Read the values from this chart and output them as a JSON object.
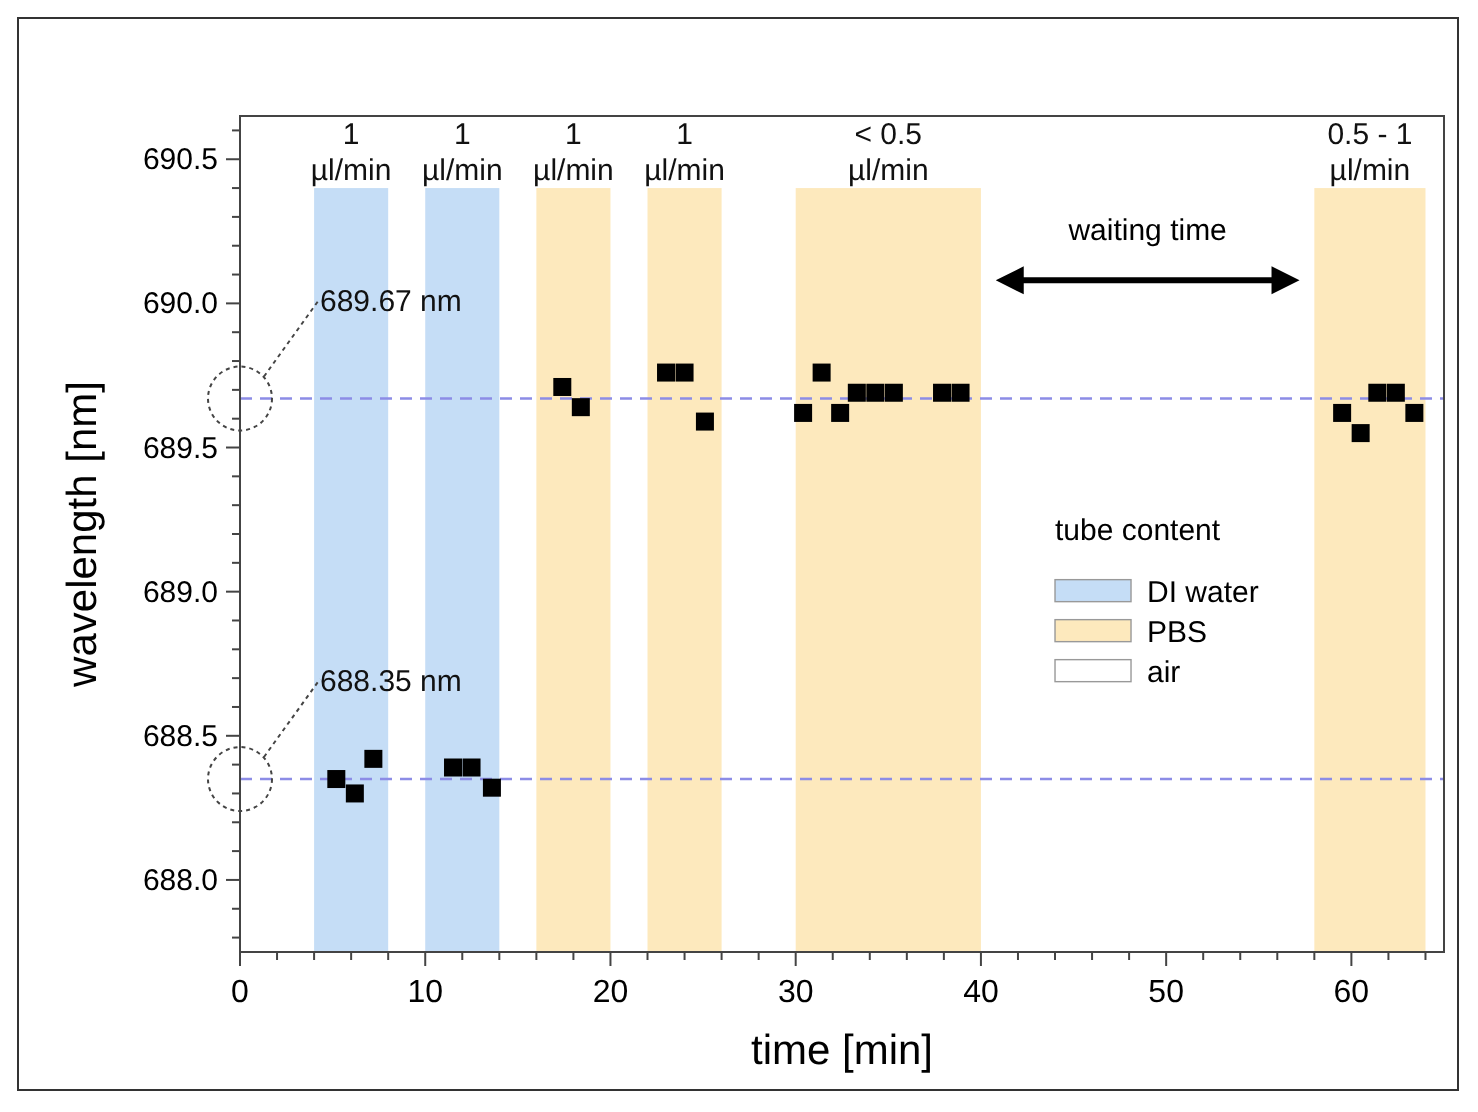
{
  "chart_data": {
    "type": "scatter",
    "xlabel": "time [min]",
    "ylabel": "wavelength [nm]",
    "legend_title": "tube content",
    "marker": "square",
    "xlim": [
      0,
      65
    ],
    "ylim": [
      687.75,
      690.65
    ],
    "xticks": [
      0,
      {
        "value": 2,
        "label": null
      },
      {
        "value": 4,
        "label": null
      },
      {
        "value": 6,
        "label": null
      },
      {
        "value": 8,
        "label": null
      },
      10,
      {
        "value": 12,
        "label": null
      },
      {
        "value": 14,
        "label": null
      },
      {
        "value": 16,
        "label": null
      },
      {
        "value": 18,
        "label": null
      },
      20,
      {
        "value": 22,
        "label": null
      },
      {
        "value": 24,
        "label": null
      },
      {
        "value": 26,
        "label": null
      },
      {
        "value": 28,
        "label": null
      },
      30,
      {
        "value": 32,
        "label": null
      },
      {
        "value": 34,
        "label": null
      },
      {
        "value": 36,
        "label": null
      },
      {
        "value": 38,
        "label": null
      },
      40,
      {
        "value": 42,
        "label": null
      },
      {
        "value": 44,
        "label": null
      },
      {
        "value": 46,
        "label": null
      },
      {
        "value": 48,
        "label": null
      },
      50,
      {
        "value": 52,
        "label": null
      },
      {
        "value": 54,
        "label": null
      },
      {
        "value": 56,
        "label": null
      },
      {
        "value": 58,
        "label": null
      },
      60,
      {
        "value": 62,
        "label": null
      },
      {
        "value": 64,
        "label": null
      }
    ],
    "yticks": [
      {
        "value": 687.8,
        "label": null
      },
      {
        "value": 687.9,
        "label": null
      },
      {
        "value": 688,
        "label": "688.0"
      },
      {
        "value": 688.1,
        "label": null
      },
      {
        "value": 688.2,
        "label": null
      },
      {
        "value": 688.3,
        "label": null
      },
      {
        "value": 688.4,
        "label": null
      },
      688.5,
      {
        "value": 688.6,
        "label": null
      },
      {
        "value": 688.7,
        "label": null
      },
      {
        "value": 688.8,
        "label": null
      },
      {
        "value": 688.9,
        "label": null
      },
      {
        "value": 689,
        "label": "689.0"
      },
      {
        "value": 689.1,
        "label": null
      },
      {
        "value": 689.2,
        "label": null
      },
      {
        "value": 689.3,
        "label": null
      },
      {
        "value": 689.4,
        "label": null
      },
      689.5,
      {
        "value": 689.6,
        "label": null
      },
      {
        "value": 689.7,
        "label": null
      },
      {
        "value": 689.8,
        "label": null
      },
      {
        "value": 689.9,
        "label": null
      },
      {
        "value": 690,
        "label": "690.0"
      },
      {
        "value": 690.1,
        "label": null
      },
      {
        "value": 690.2,
        "label": null
      },
      {
        "value": 690.3,
        "label": null
      },
      {
        "value": 690.4,
        "label": null
      },
      690.5,
      {
        "value": 690.6,
        "label": null
      }
    ],
    "series": [
      {
        "color": "#000000",
        "x": [
          5.2,
          6.2,
          7.2,
          11.5,
          12.5,
          13.6,
          17.4,
          18.4,
          23,
          24,
          25.1,
          30.4,
          31.4,
          32.4,
          33.3,
          34.3,
          35.3,
          37.9,
          38.9,
          59.5,
          60.5,
          61.4,
          62.4,
          63.4
        ],
        "values": [
          688.35,
          688.3,
          688.42,
          688.39,
          688.39,
          688.32,
          689.71,
          689.64,
          689.76,
          689.76,
          689.59,
          689.62,
          689.76,
          689.62,
          689.69,
          689.69,
          689.69,
          689.69,
          689.69,
          689.62,
          689.55,
          689.69,
          689.69,
          689.62
        ]
      }
    ],
    "bands": [
      {
        "axis": "x",
        "from": 4,
        "to": 8,
        "label": "1\nµl/min",
        "color": "#c5ddf6"
      },
      {
        "axis": "x",
        "from": 10,
        "to": 14,
        "label": "1\nµl/min",
        "color": "#c5ddf6"
      },
      {
        "axis": "x",
        "from": 16,
        "to": 20,
        "label": "1\nµl/min",
        "color": "#fde9bd"
      },
      {
        "axis": "x",
        "from": 22,
        "to": 26,
        "label": "1\nµl/min",
        "color": "#fde9bd"
      },
      {
        "axis": "x",
        "from": 30,
        "to": 40,
        "label": "< 0.5\nµl/min",
        "color": "#fde9bd"
      },
      {
        "axis": "x",
        "from": 58,
        "to": 64,
        "label": "0.5 - 1\nµl/min",
        "color": "#fde9bd"
      }
    ],
    "ref_lines": [
      {
        "axis": "y",
        "value": 689.67,
        "label": "689.67 nm",
        "color": "#8c8ce6",
        "line_style": "dashed"
      },
      {
        "axis": "y",
        "value": 688.35,
        "label": "688.35 nm",
        "color": "#8c8ce6",
        "line_style": "dashed"
      }
    ],
    "annotations": [
      "waiting time",
      "DI water",
      "PBS",
      "air"
    ]
  }
}
